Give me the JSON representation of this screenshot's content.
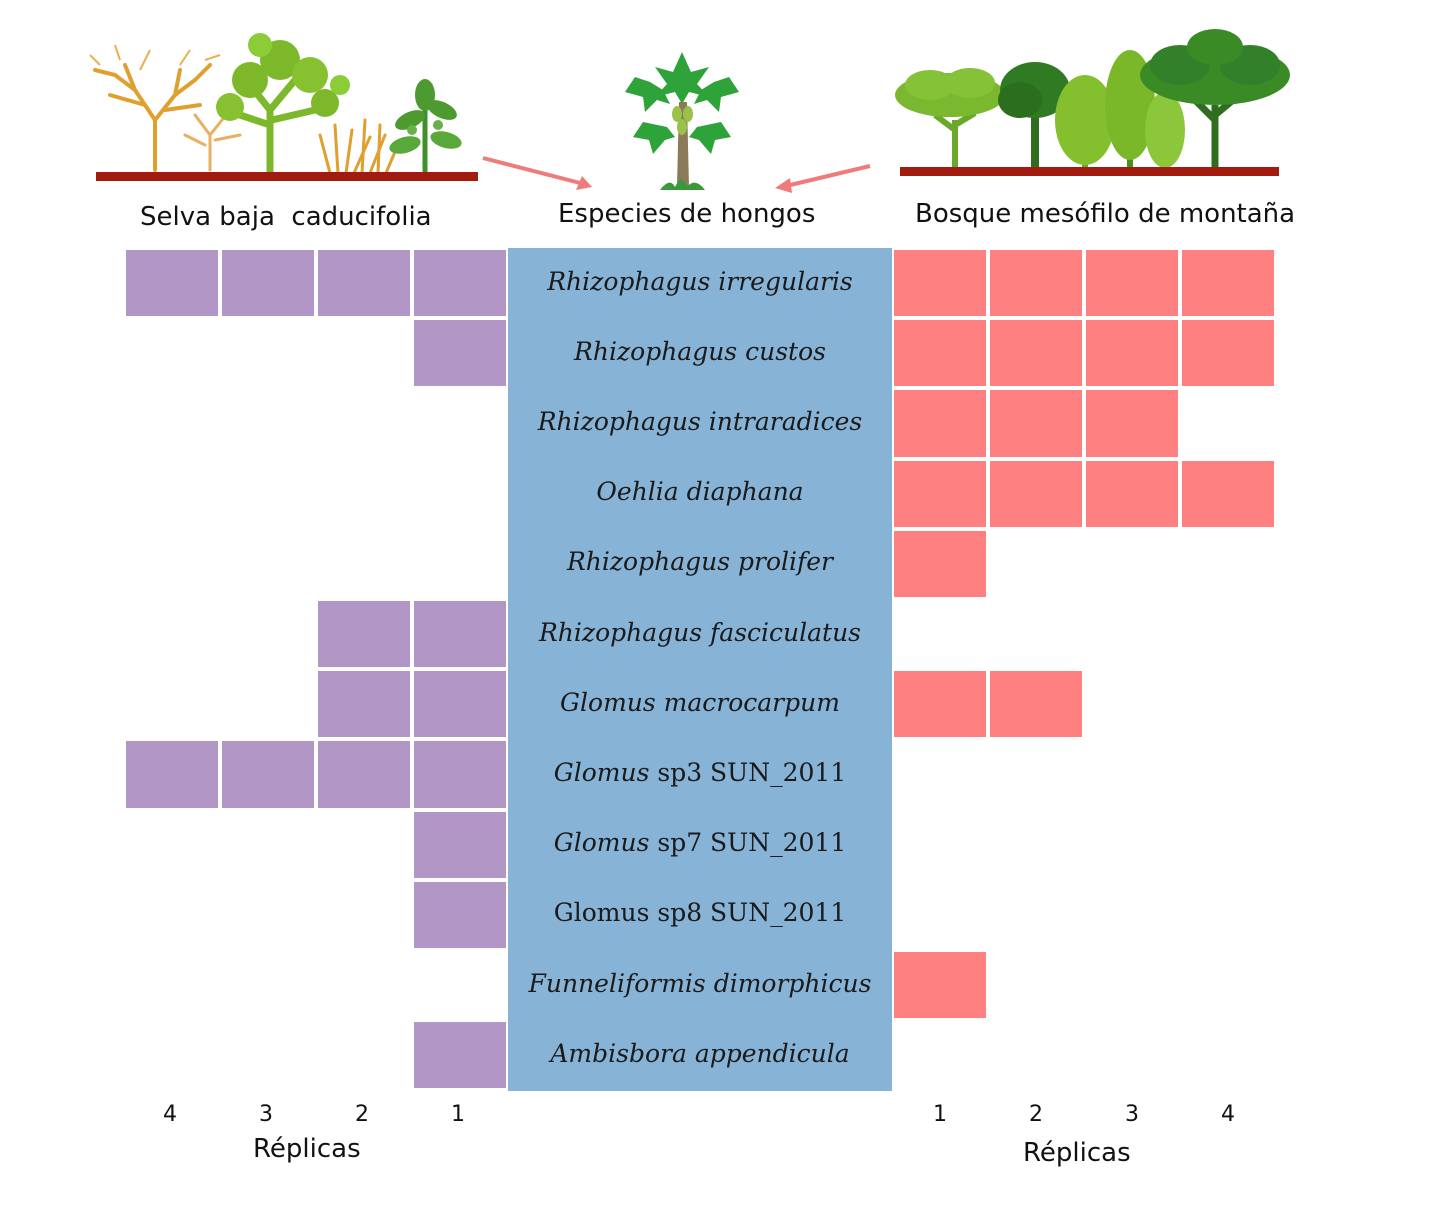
{
  "headers": {
    "left": "Selva baja  caducifolia",
    "center": "Especies de hongos",
    "right": "Bosque mesófilo de montaña"
  },
  "colors": {
    "left_cell": "#b196c6",
    "right_cell": "#fe8080",
    "species_panel": "#87b3d6",
    "ground": "#a31a0e",
    "arrow": "#ef7b7b"
  },
  "species": [
    {
      "genus": "Rhizophagus",
      "epithet": "irregularis",
      "genus_italic": true,
      "epithet_italic": true,
      "left_replicas": [
        1,
        2,
        3,
        4
      ],
      "right_replicas": [
        1,
        2,
        3,
        4
      ]
    },
    {
      "genus": "Rhizophagus",
      "epithet": "custos",
      "genus_italic": true,
      "epithet_italic": true,
      "left_replicas": [
        1
      ],
      "right_replicas": [
        1,
        2,
        3,
        4
      ]
    },
    {
      "genus": "Rhizophagus",
      "epithet": "intraradices",
      "genus_italic": true,
      "epithet_italic": true,
      "left_replicas": [],
      "right_replicas": [
        1,
        2,
        3
      ]
    },
    {
      "genus": "Oehlia",
      "epithet": "diaphana",
      "genus_italic": true,
      "epithet_italic": true,
      "left_replicas": [],
      "right_replicas": [
        1,
        2,
        3,
        4
      ]
    },
    {
      "genus": "Rhizophagus",
      "epithet": "prolifer",
      "genus_italic": true,
      "epithet_italic": true,
      "left_replicas": [],
      "right_replicas": [
        1
      ]
    },
    {
      "genus": "Rhizophagus",
      "epithet": "fasciculatus",
      "genus_italic": true,
      "epithet_italic": true,
      "left_replicas": [
        1,
        2
      ],
      "right_replicas": []
    },
    {
      "genus": "Glomus",
      "epithet": "macrocarpum",
      "genus_italic": true,
      "epithet_italic": true,
      "left_replicas": [
        1,
        2
      ],
      "right_replicas": [
        1,
        2
      ]
    },
    {
      "genus": "Glomus",
      "epithet": "sp3 SUN_2011",
      "genus_italic": true,
      "epithet_italic": false,
      "left_replicas": [
        1,
        2,
        3,
        4
      ],
      "right_replicas": []
    },
    {
      "genus": "Glomus",
      "epithet": "sp7 SUN_2011",
      "genus_italic": true,
      "epithet_italic": false,
      "left_replicas": [
        1
      ],
      "right_replicas": []
    },
    {
      "genus": "Glomus",
      "epithet": "sp8 SUN_2011",
      "genus_italic": false,
      "epithet_italic": false,
      "left_replicas": [
        1
      ],
      "right_replicas": []
    },
    {
      "genus": "Funneliformis",
      "epithet": "dimorphicus",
      "genus_italic": true,
      "epithet_italic": true,
      "left_replicas": [],
      "right_replicas": [
        1
      ]
    },
    {
      "genus": "Ambisbora",
      "epithet": "appendicula",
      "genus_italic": true,
      "epithet_italic": true,
      "left_replicas": [
        1
      ],
      "right_replicas": []
    }
  ],
  "left_axis": {
    "ticks": [
      "4",
      "3",
      "2",
      "1"
    ],
    "title": "Réplicas"
  },
  "right_axis": {
    "ticks": [
      "1",
      "2",
      "3",
      "4"
    ],
    "title": "Réplicas"
  },
  "icons": {
    "left_illustration": "dry-forest-trees-icon",
    "center_illustration": "papaya-plant-icon",
    "right_illustration": "montane-forest-trees-icon"
  }
}
